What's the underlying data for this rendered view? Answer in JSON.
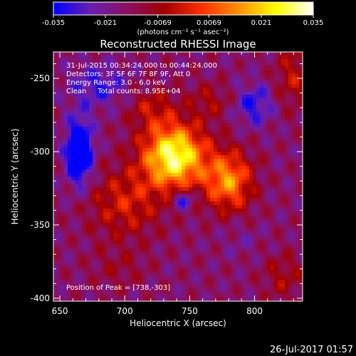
{
  "chart_data": {
    "type": "heatmap",
    "title": "Reconstructed RHESSI Image",
    "xlabel": "Heliocentric X (arcsec)",
    "ylabel": "Heliocentric Y (arcsec)",
    "xlim": [
      645,
      837
    ],
    "ylim": [
      -402,
      -232
    ],
    "x_ticks": [
      650,
      700,
      750,
      800
    ],
    "y_ticks": [
      -250,
      -300,
      -350,
      -400
    ],
    "grid": false,
    "colormap": "rhessi-hot (blue-purple-red-orange-yellow-white)",
    "colorbar": {
      "min": -0.035,
      "max": 0.035,
      "ticks": [
        "-0.035",
        "-0.021",
        "-0.0069",
        "0.0069",
        "0.021",
        "0.035"
      ],
      "unit_label": "(photons cm⁻² s⁻¹ asec⁻²)",
      "stops": [
        "#0000ff",
        "#6a1fb0",
        "#8a1060",
        "#a00000",
        "#ff3000",
        "#ff9000",
        "#ffff00",
        "#ffffff"
      ]
    },
    "annotations": {
      "time_range": "31-Jul-2015 00:34:24.000 to 00:44:24.000",
      "detectors": "Detectors: 3F 5F 6F 7F 8F 9F, Att 0",
      "energy": "Energy Range: 3.0 - 6.0 keV",
      "clean": "Clean     Total counts: 8.95E+04",
      "peak": "Position of Peak = [738,-303]"
    },
    "peak_position": [
      738,
      -303
    ],
    "blobs": [
      {
        "x": 738,
        "y": -303,
        "sx": 24,
        "sy": 22,
        "amp": 0.046
      },
      {
        "x": 780,
        "y": -320,
        "sx": 18,
        "sy": 20,
        "amp": 0.03
      },
      {
        "x": 700,
        "y": -335,
        "sx": 28,
        "sy": 24,
        "amp": 0.016
      },
      {
        "x": 720,
        "y": -270,
        "sx": 18,
        "sy": 14,
        "amp": 0.012
      },
      {
        "x": 765,
        "y": -265,
        "sx": 16,
        "sy": 12,
        "amp": 0.01
      },
      {
        "x": 830,
        "y": -248,
        "sx": 14,
        "sy": 22,
        "amp": 0.013
      },
      {
        "x": 822,
        "y": -385,
        "sx": 16,
        "sy": 16,
        "amp": 0.01
      },
      {
        "x": 695,
        "y": -380,
        "sx": 22,
        "sy": 14,
        "amp": 0.006
      },
      {
        "x": 665,
        "y": -300,
        "sx": 10,
        "sy": 22,
        "amp": -0.034
      },
      {
        "x": 745,
        "y": -333,
        "sx": 9,
        "sy": 7,
        "amp": -0.018
      },
      {
        "x": 800,
        "y": -268,
        "sx": 14,
        "sy": 14,
        "amp": -0.016
      },
      {
        "x": 680,
        "y": -255,
        "sx": 22,
        "sy": 14,
        "amp": -0.014
      },
      {
        "x": 790,
        "y": -360,
        "sx": 16,
        "sy": 12,
        "amp": -0.004
      }
    ]
  },
  "timestamp": "26-Jul-2017 01:57"
}
